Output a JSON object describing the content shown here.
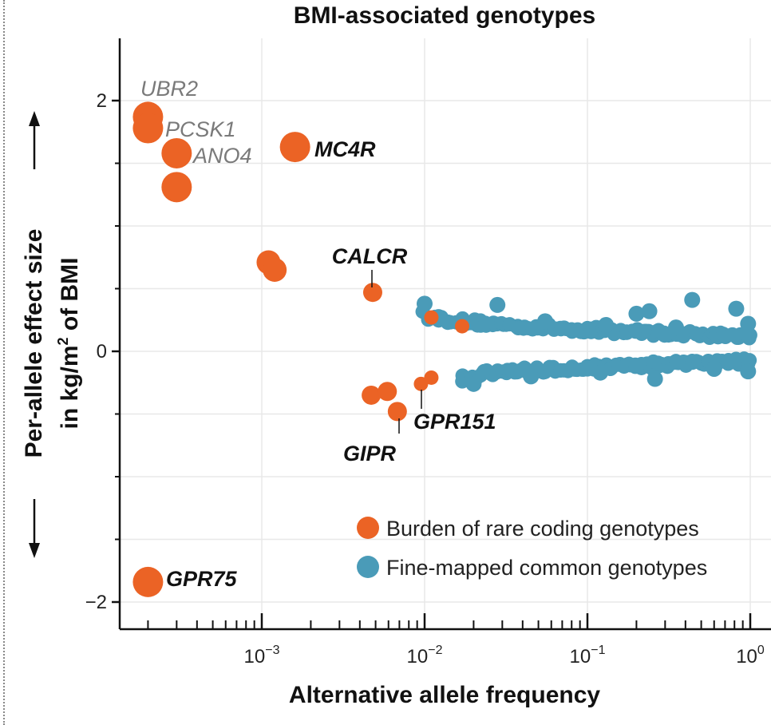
{
  "colors": {
    "rare": "#EB6325",
    "common": "#4A9BB8",
    "grid": "#E8E8E8",
    "axis": "#111111"
  },
  "chart_data": {
    "type": "scatter",
    "title": "BMI-associated genotypes",
    "xlabel": "Alternative allele frequency",
    "ylabel_line1": "Per-allele effect size",
    "ylabel_line2_prefix": "in kg/m",
    "ylabel_line2_sup": "2",
    "ylabel_line2_suffix": " of BMI",
    "x_scale": "log10",
    "xlim": [
      0.00013,
      1.1
    ],
    "ylim": [
      -2.2,
      2.5
    ],
    "grid": true,
    "legend_position": "bottom-right",
    "x_ticks": [
      {
        "value": 0.001,
        "base": "10",
        "exp": "−3"
      },
      {
        "value": 0.01,
        "base": "10",
        "exp": "−2"
      },
      {
        "value": 0.1,
        "base": "10",
        "exp": "−1"
      },
      {
        "value": 1,
        "base": "10",
        "exp": "0"
      }
    ],
    "y_ticks": [
      {
        "value": 2,
        "label": "2"
      },
      {
        "value": 0,
        "label": "0"
      },
      {
        "value": -2,
        "label": "−2"
      }
    ],
    "series": [
      {
        "name": "Burden of rare coding genotypes",
        "color": "#EB6325",
        "points": [
          {
            "x": 0.0002,
            "y": 1.87,
            "size": "large",
            "gene": "UBR2"
          },
          {
            "x": 0.0002,
            "y": 1.78,
            "size": "large",
            "gene": "PCSK1"
          },
          {
            "x": 0.0003,
            "y": 1.58,
            "size": "large",
            "gene": "ANO4"
          },
          {
            "x": 0.0003,
            "y": 1.31,
            "size": "large"
          },
          {
            "x": 0.0016,
            "y": 1.63,
            "size": "large",
            "gene": "MC4R"
          },
          {
            "x": 0.0011,
            "y": 0.71,
            "size": "medium"
          },
          {
            "x": 0.0012,
            "y": 0.65,
            "size": "medium"
          },
          {
            "x": 0.0048,
            "y": 0.47,
            "size": "small",
            "gene": "CALCR"
          },
          {
            "x": 0.011,
            "y": 0.27,
            "size": "tiny"
          },
          {
            "x": 0.017,
            "y": 0.2,
            "size": "tiny"
          },
          {
            "x": 0.0047,
            "y": -0.35,
            "size": "small"
          },
          {
            "x": 0.0059,
            "y": -0.32,
            "size": "small"
          },
          {
            "x": 0.0068,
            "y": -0.48,
            "size": "small",
            "gene": "GIPR"
          },
          {
            "x": 0.0095,
            "y": -0.26,
            "size": "tiny",
            "gene": "GPR151"
          },
          {
            "x": 0.011,
            "y": -0.21,
            "size": "tiny"
          },
          {
            "x": 0.0002,
            "y": -1.84,
            "size": "large",
            "gene": "GPR75"
          }
        ]
      },
      {
        "name": "Fine-mapped common genotypes",
        "color": "#4A9BB8",
        "band_positive": {
          "x_from": 0.01,
          "x_to": 1.0,
          "y_start": 0.3,
          "y_end": 0.12
        },
        "band_negative": {
          "x_from": 0.017,
          "x_to": 1.0,
          "y_start": -0.22,
          "y_end": -0.08
        },
        "outliers": [
          {
            "x": 0.01,
            "y": 0.38
          },
          {
            "x": 0.028,
            "y": 0.37
          },
          {
            "x": 0.44,
            "y": 0.41
          },
          {
            "x": 0.82,
            "y": 0.34
          },
          {
            "x": 0.24,
            "y": 0.32
          },
          {
            "x": 0.2,
            "y": 0.3
          },
          {
            "x": 0.97,
            "y": 0.22
          },
          {
            "x": 0.055,
            "y": 0.24
          },
          {
            "x": 0.13,
            "y": 0.21
          },
          {
            "x": 0.35,
            "y": 0.19
          },
          {
            "x": 0.02,
            "y": -0.26
          },
          {
            "x": 0.045,
            "y": -0.2
          },
          {
            "x": 0.12,
            "y": -0.17
          },
          {
            "x": 0.26,
            "y": -0.22
          },
          {
            "x": 0.97,
            "y": -0.16
          },
          {
            "x": 0.6,
            "y": -0.14
          }
        ]
      }
    ],
    "annotations": [
      {
        "text": "UBR2",
        "style": "gray"
      },
      {
        "text": "PCSK1",
        "style": "gray"
      },
      {
        "text": "ANO4",
        "style": "gray"
      },
      {
        "text": "MC4R",
        "style": "bold"
      },
      {
        "text": "CALCR",
        "style": "bold"
      },
      {
        "text": "GPR151",
        "style": "bold"
      },
      {
        "text": "GIPR",
        "style": "bold"
      },
      {
        "text": "GPR75",
        "style": "bold"
      }
    ]
  }
}
